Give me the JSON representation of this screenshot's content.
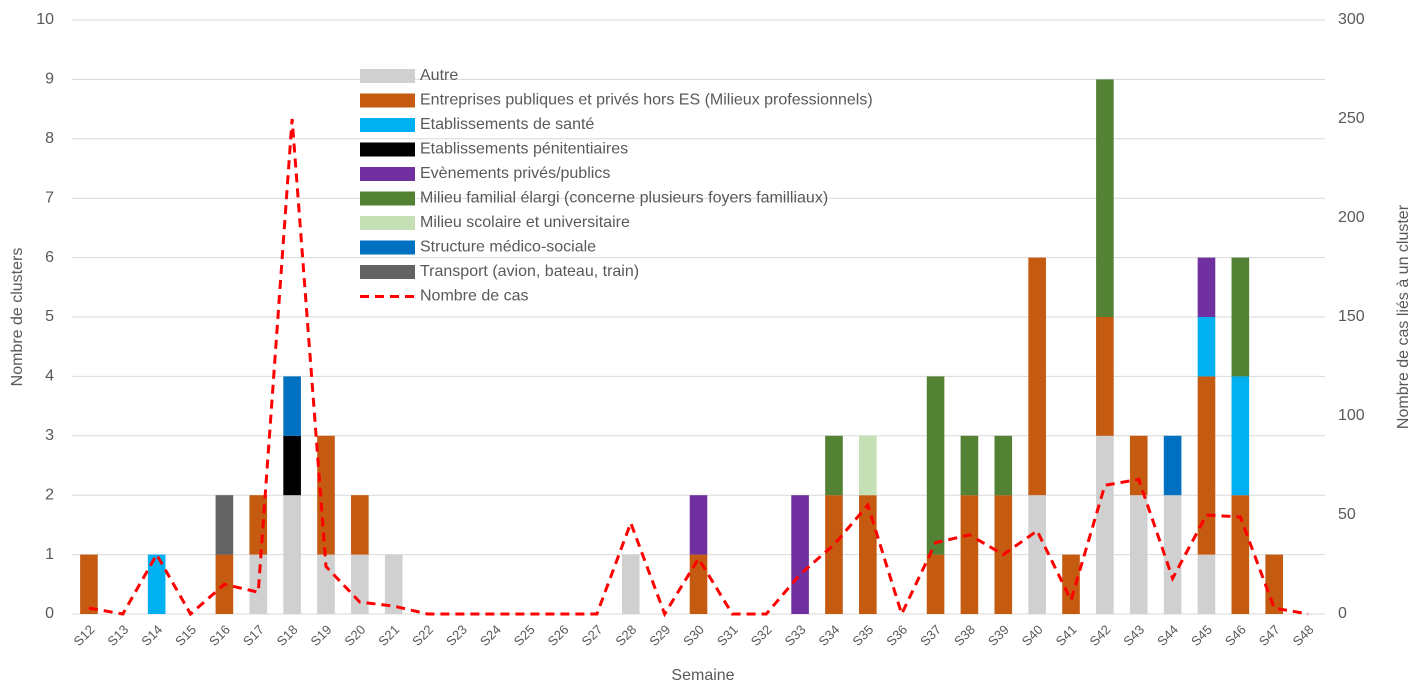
{
  "chart_data": {
    "type": "bar",
    "stacked": true,
    "grid": true,
    "legend": "top-left",
    "xlabel": "Semaine",
    "ylabel": "Nombre de clusters",
    "y2label": "Nombre de cas liés à un cluster",
    "categories": [
      "S12",
      "S13",
      "S14",
      "S15",
      "S16",
      "S17",
      "S18",
      "S19",
      "S20",
      "S21",
      "S22",
      "S23",
      "S24",
      "S25",
      "S26",
      "S27",
      "S28",
      "S29",
      "S30",
      "S31",
      "S32",
      "S33",
      "S34",
      "S35",
      "S36",
      "S37",
      "S38",
      "S39",
      "S40",
      "S41",
      "S42",
      "S43",
      "S44",
      "S45",
      "S46",
      "S47",
      "S48"
    ],
    "ylim": [
      0,
      10
    ],
    "yticks": [
      0,
      1,
      2,
      3,
      4,
      5,
      6,
      7,
      8,
      9,
      10
    ],
    "y2lim": [
      0,
      300
    ],
    "y2ticks": [
      0,
      50,
      100,
      150,
      200,
      250,
      300
    ],
    "series": [
      {
        "name": "Autre",
        "color": "#d0d0d0",
        "values": [
          0,
          0,
          0,
          0,
          0,
          1,
          2,
          1,
          1,
          1,
          0,
          0,
          0,
          0,
          0,
          0,
          1,
          0,
          0,
          0,
          0,
          0,
          0,
          0,
          0,
          0,
          0,
          0,
          2,
          0,
          3,
          2,
          2,
          1,
          0,
          0,
          0
        ]
      },
      {
        "name": "Entreprises publiques et privés hors ES (Milieux professionnels)",
        "color": "#c55a11",
        "values": [
          1,
          0,
          0,
          0,
          1,
          1,
          0,
          2,
          1,
          0,
          0,
          0,
          0,
          0,
          0,
          0,
          0,
          0,
          1,
          0,
          0,
          0,
          2,
          2,
          0,
          1,
          2,
          2,
          4,
          1,
          2,
          1,
          0,
          3,
          2,
          1,
          0
        ]
      },
      {
        "name": "Etablissements de santé",
        "color": "#00b0f0",
        "values": [
          0,
          0,
          1,
          0,
          0,
          0,
          0,
          0,
          0,
          0,
          0,
          0,
          0,
          0,
          0,
          0,
          0,
          0,
          0,
          0,
          0,
          0,
          0,
          0,
          0,
          0,
          0,
          0,
          0,
          0,
          0,
          0,
          0,
          1,
          2,
          0,
          0
        ]
      },
      {
        "name": "Etablissements pénitentiaires",
        "color": "#000000",
        "values": [
          0,
          0,
          0,
          0,
          0,
          0,
          1,
          0,
          0,
          0,
          0,
          0,
          0,
          0,
          0,
          0,
          0,
          0,
          0,
          0,
          0,
          0,
          0,
          0,
          0,
          0,
          0,
          0,
          0,
          0,
          0,
          0,
          0,
          0,
          0,
          0,
          0
        ]
      },
      {
        "name": "Evènements privés/publics",
        "color": "#7030a0",
        "values": [
          0,
          0,
          0,
          0,
          0,
          0,
          0,
          0,
          0,
          0,
          0,
          0,
          0,
          0,
          0,
          0,
          0,
          0,
          1,
          0,
          0,
          2,
          0,
          0,
          0,
          0,
          0,
          0,
          0,
          0,
          0,
          0,
          0,
          1,
          0,
          0,
          0
        ]
      },
      {
        "name": "Milieu familial élargi (concerne plusieurs foyers familliaux)",
        "color": "#548235",
        "values": [
          0,
          0,
          0,
          0,
          0,
          0,
          0,
          0,
          0,
          0,
          0,
          0,
          0,
          0,
          0,
          0,
          0,
          0,
          0,
          0,
          0,
          0,
          1,
          0,
          0,
          3,
          1,
          1,
          0,
          0,
          4,
          0,
          0,
          0,
          2,
          0,
          0
        ]
      },
      {
        "name": "Milieu scolaire et universitaire",
        "color": "#c5e0b4",
        "values": [
          0,
          0,
          0,
          0,
          0,
          0,
          0,
          0,
          0,
          0,
          0,
          0,
          0,
          0,
          0,
          0,
          0,
          0,
          0,
          0,
          0,
          0,
          0,
          1,
          0,
          0,
          0,
          0,
          0,
          0,
          0,
          0,
          0,
          0,
          0,
          0,
          0
        ]
      },
      {
        "name": "Structure médico-sociale",
        "color": "#0070c0",
        "values": [
          0,
          0,
          0,
          0,
          0,
          0,
          1,
          0,
          0,
          0,
          0,
          0,
          0,
          0,
          0,
          0,
          0,
          0,
          0,
          0,
          0,
          0,
          0,
          0,
          0,
          0,
          0,
          0,
          0,
          0,
          0,
          0,
          1,
          0,
          0,
          0,
          0
        ]
      },
      {
        "name": "Transport (avion, bateau, train)",
        "color": "#636363",
        "values": [
          0,
          0,
          0,
          0,
          1,
          0,
          0,
          0,
          0,
          0,
          0,
          0,
          0,
          0,
          0,
          0,
          0,
          0,
          0,
          0,
          0,
          0,
          0,
          0,
          0,
          0,
          0,
          0,
          0,
          0,
          0,
          0,
          0,
          0,
          0,
          0,
          0
        ]
      },
      {
        "name": "Nombre de cas",
        "color": "#ff0000",
        "axis": "y2",
        "type": "line",
        "dashed": true,
        "values": [
          3,
          0,
          30,
          0,
          15,
          11,
          250,
          24,
          6,
          4,
          0,
          0,
          0,
          0,
          0,
          0,
          46,
          0,
          28,
          0,
          0,
          20,
          35,
          55,
          0,
          36,
          40,
          30,
          42,
          7,
          65,
          68,
          18,
          50,
          49,
          3,
          0
        ]
      }
    ]
  }
}
